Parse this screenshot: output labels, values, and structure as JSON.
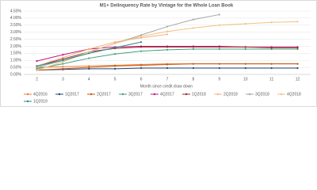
{
  "chart_data": {
    "type": "line",
    "title": "M1+ Delinquency Rate by Vintage for the Whole Loan Book",
    "x_label": "Month since credit draw down",
    "categories": [
      "2",
      "3",
      "4",
      "5",
      "6",
      "7",
      "8",
      "9",
      "10",
      "11",
      "12"
    ],
    "ylim": [
      0,
      4.5
    ],
    "yticks": [
      {
        "value": 0,
        "label": "0.00%"
      },
      {
        "value": 0.5,
        "label": "0.50%"
      },
      {
        "value": 1,
        "label": "1.00%"
      },
      {
        "value": 1.5,
        "label": "1.50%"
      },
      {
        "value": 2,
        "label": "2.00%"
      },
      {
        "value": 2.5,
        "label": "2.50%"
      },
      {
        "value": 3,
        "label": "3.00%"
      },
      {
        "value": 3.5,
        "label": "3.50%"
      },
      {
        "value": 4,
        "label": "4.00%"
      },
      {
        "value": 4.5,
        "label": "4.50%"
      }
    ],
    "grid": true,
    "series": [
      {
        "name": "4Q2016",
        "color": "#ed7d31",
        "values": [
          0.5,
          0.55,
          0.6,
          0.65,
          0.7,
          0.75,
          0.75,
          0.75,
          0.75,
          0.75,
          0.75
        ]
      },
      {
        "name": "1Q2017",
        "color": "#264478",
        "values": [
          0.3,
          0.35,
          0.4,
          0.4,
          0.45,
          0.45,
          0.45,
          0.45,
          0.45,
          0.45,
          0.45
        ]
      },
      {
        "name": "2Q2017",
        "color": "#c55a11",
        "values": [
          0.3,
          0.4,
          0.5,
          0.6,
          0.65,
          0.7,
          0.75,
          0.75,
          0.75,
          0.75,
          0.75
        ]
      },
      {
        "name": "3Q2017",
        "color": "#43a07a",
        "values": [
          0.4,
          0.75,
          1.15,
          1.45,
          1.65,
          1.75,
          1.8,
          1.8,
          1.8,
          1.8,
          1.8
        ]
      },
      {
        "name": "4Q2017",
        "color": "#c0187f",
        "values": [
          0.95,
          1.4,
          1.8,
          1.95,
          2.0,
          2.0,
          2.0,
          2.0,
          1.95,
          1.95,
          1.95
        ]
      },
      {
        "name": "1Q2018",
        "color": "#9e2a2b",
        "values": [
          0.6,
          1.1,
          1.6,
          1.85,
          1.95,
          1.95,
          1.95,
          1.95,
          1.95,
          1.9,
          1.9
        ]
      },
      {
        "name": "2Q2018",
        "color": "#f4b183",
        "values": [
          0.6,
          1.2,
          1.8,
          2.3,
          2.6,
          2.85,
          null,
          null,
          null,
          null,
          null
        ]
      },
      {
        "name": "3Q2018",
        "color": "#a5a5a5",
        "values": [
          0.5,
          1.0,
          1.6,
          2.2,
          2.8,
          3.4,
          3.9,
          4.25,
          null,
          null,
          null
        ]
      },
      {
        "name": "4Q2018",
        "color": "#f2c27e",
        "values": [
          0.3,
          0.9,
          1.6,
          2.2,
          2.7,
          3.05,
          3.3,
          3.5,
          3.6,
          3.7,
          3.75
        ]
      },
      {
        "name": "1Q2019",
        "color": "#2e8b8b",
        "values": [
          0.6,
          1.0,
          1.5,
          1.9,
          2.3,
          null,
          null,
          null,
          null,
          null,
          null
        ]
      }
    ]
  }
}
